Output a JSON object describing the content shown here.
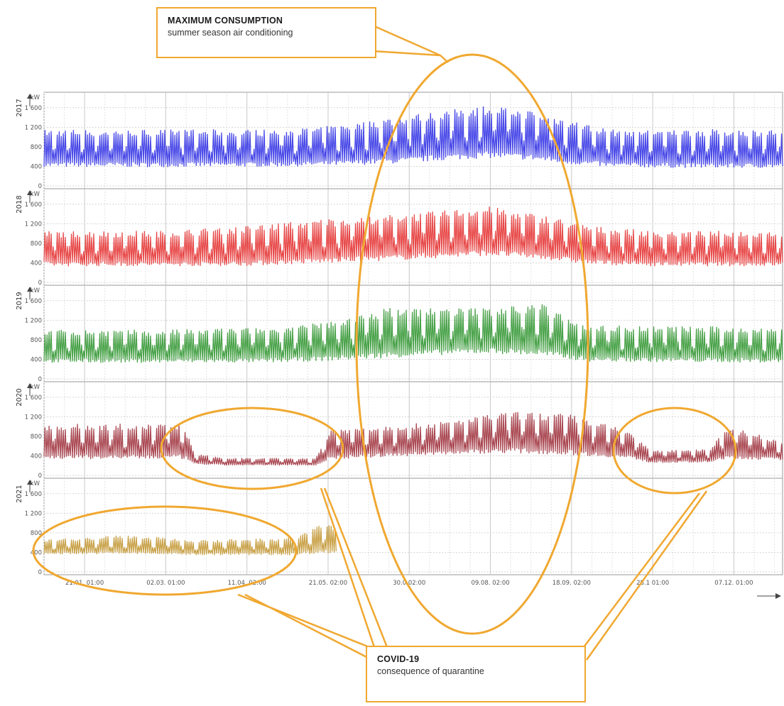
{
  "callouts": {
    "max": {
      "head": "MAXIMUM CONSUMPTION",
      "sub": "summer season air conditioning"
    },
    "covid": {
      "head": "COVID-19",
      "sub": "consequence of quarantine"
    }
  },
  "highlight_color": "#f0a830",
  "chart_data": {
    "type": "area",
    "unit": "kW",
    "y_ticks": [
      0,
      400,
      800,
      1200,
      1600
    ],
    "y_tick_labels": [
      "0",
      "400",
      "800",
      "1 200",
      "1 600"
    ],
    "ylim": [
      0,
      1800
    ],
    "x_ticks": [
      "21.01. 01:00",
      "02.03. 01:00",
      "11.04. 02:00",
      "21.05. 02:00",
      "30.06. 02:00",
      "09.08. 02:00",
      "18.09. 02:00",
      "28.10. 01:00",
      "07.12. 01:00"
    ],
    "x_tick_labels_shown": [
      "21.01. 01:00",
      "02.03. 01:00",
      "11.04. 02:00",
      "21.05. 02:00",
      "30.0 02:00",
      "09.08. 02:00",
      "18.09. 02:00",
      "28.1 01:00",
      "07.12. 01:00"
    ],
    "x_tick_day_of_year": [
      21,
      61,
      101,
      141,
      181,
      221,
      261,
      301,
      341
    ],
    "xlim_day_of_year": [
      1,
      365
    ],
    "grid": true,
    "series": [
      {
        "name": "2017",
        "color": "#3b3be6",
        "envelope": {
          "day": [
            1,
            60,
            120,
            150,
            180,
            200,
            220,
            240,
            260,
            280,
            320,
            365
          ],
          "low": [
            350,
            350,
            360,
            380,
            420,
            480,
            520,
            480,
            400,
            350,
            330,
            330
          ],
          "high": [
            1150,
            1150,
            1150,
            1250,
            1450,
            1550,
            1650,
            1550,
            1350,
            1150,
            1150,
            1150
          ]
        }
      },
      {
        "name": "2018",
        "color": "#e63b3b",
        "envelope": {
          "day": [
            1,
            60,
            100,
            140,
            180,
            220,
            250,
            270,
            300,
            365
          ],
          "low": [
            300,
            300,
            300,
            350,
            420,
            500,
            420,
            330,
            300,
            300
          ],
          "high": [
            1050,
            1050,
            1150,
            1300,
            1400,
            1550,
            1350,
            1150,
            1050,
            1050
          ]
        }
      },
      {
        "name": "2019",
        "color": "#3a9a3a",
        "envelope": {
          "day": [
            1,
            60,
            110,
            140,
            170,
            200,
            220,
            245,
            270,
            365
          ],
          "low": [
            300,
            300,
            300,
            330,
            380,
            450,
            480,
            420,
            320,
            300
          ],
          "high": [
            1000,
            1000,
            1050,
            1150,
            1450,
            1450,
            1450,
            1550,
            1100,
            1050
          ]
        }
      },
      {
        "name": "2020",
        "color": "#a33a44",
        "envelope": {
          "day": [
            1,
            70,
            75,
            90,
            135,
            142,
            200,
            230,
            260,
            290,
            300,
            330,
            335,
            350,
            365
          ],
          "low": [
            300,
            300,
            220,
            200,
            200,
            300,
            400,
            420,
            380,
            320,
            250,
            250,
            300,
            300,
            300
          ],
          "high": [
            1050,
            1050,
            450,
            350,
            350,
            950,
            1100,
            1300,
            1250,
            900,
            500,
            550,
            950,
            900,
            650
          ]
        }
      },
      {
        "name": "2021",
        "color": "#c49a3a",
        "envelope": {
          "day": [
            1,
            40,
            80,
            125,
            135,
            145
          ],
          "low": [
            350,
            350,
            330,
            330,
            350,
            350
          ],
          "high": [
            650,
            750,
            650,
            700,
            950,
            950
          ]
        }
      }
    ]
  }
}
